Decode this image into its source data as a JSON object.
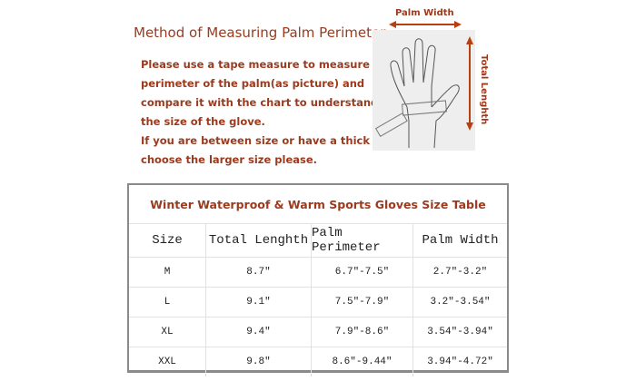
{
  "heading": "Method of Measuring Palm Perimeter",
  "instructions": [
    "Please use a tape measure to measure the",
    "perimeter of the palm(as picture) and",
    "compare it with the chart to understand",
    "the size of the glove.",
    "If you are between size or have a thick palm,",
    "choose the larger size please."
  ],
  "diagram": {
    "palm_width_label": "Palm Width",
    "total_length_label": "Total Lenghth"
  },
  "table": {
    "caption": "Winter Waterproof & Warm Sports Gloves Size Table",
    "headers": [
      "Size",
      "Total Lenghth",
      "Palm Perimeter",
      "Palm Width"
    ],
    "rows": [
      [
        "M",
        "8.7″",
        "6.7″-7.5″",
        "2.7″-3.2″"
      ],
      [
        "L",
        "9.1″",
        "7.5″-7.9″",
        "3.2″-3.54″"
      ],
      [
        "XL",
        "9.4″",
        "7.9″-8.6″",
        "3.54″-3.94″"
      ],
      [
        "XXL",
        "9.8″",
        "8.6″-9.44″",
        "3.94″-4.72″"
      ]
    ]
  },
  "colors": {
    "accent": "#9c3a1e",
    "arrow": "#b8400f"
  }
}
